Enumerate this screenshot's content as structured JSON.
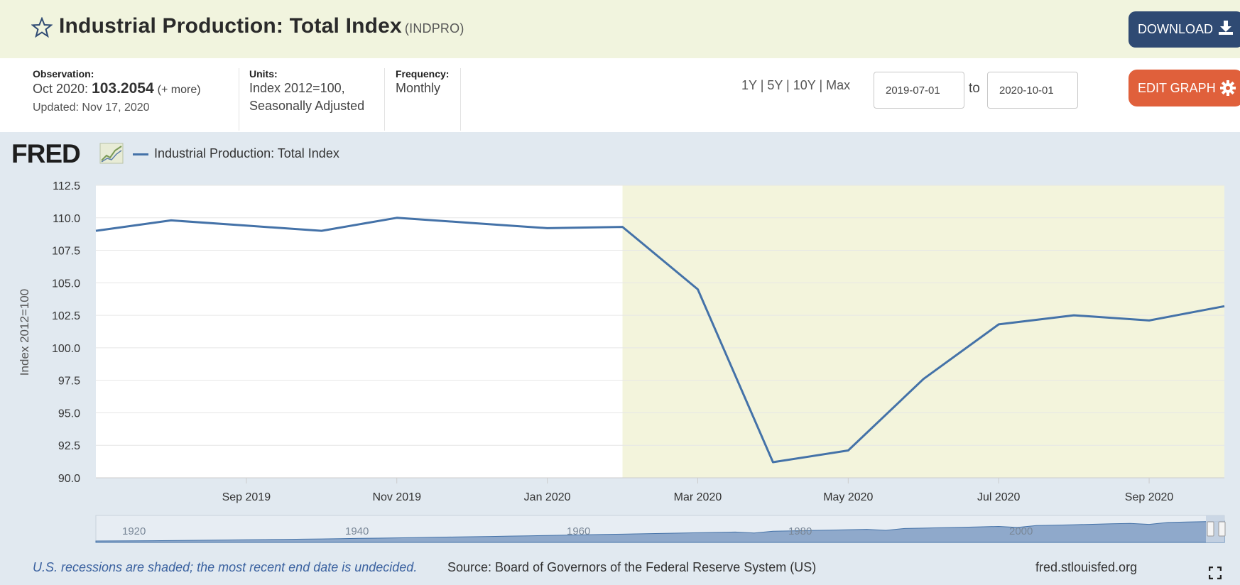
{
  "header": {
    "title": "Industrial Production: Total Index",
    "series_id": "(INDPRO)",
    "download_label": "DOWNLOAD",
    "accent": "#2f4a73"
  },
  "info": {
    "observation_label": "Observation:",
    "observation_period": "Oct 2020:",
    "observation_value": "103.2054",
    "observation_more": "(+ more)",
    "updated": "Updated: Nov 17, 2020",
    "units_label": "Units:",
    "units_line1": "Index 2012=100,",
    "units_line2": "Seasonally Adjusted",
    "frequency_label": "Frequency:",
    "frequency_value": "Monthly"
  },
  "controls": {
    "range_links": "1Y | 5Y | 10Y | Max",
    "start_date": "2019-07-01",
    "to_label": "to",
    "end_date": "2020-10-01",
    "edit_label": "EDIT GRAPH",
    "edit_color": "#e0603b"
  },
  "logo": "FRED",
  "footer": {
    "recession_note": "U.S. recessions are shaded; the most recent end date is undecided.",
    "source": "Source: Board of Governors of the Federal Reserve System (US)",
    "site": "fred.stlouisfed.org"
  },
  "chart_data": {
    "type": "line",
    "legend": "Industrial Production: Total Index",
    "ylabel": "Index 2012=100",
    "ylim": [
      90.0,
      112.5
    ],
    "yticks": [
      "90.0",
      "92.5",
      "95.0",
      "97.5",
      "100.0",
      "102.5",
      "105.0",
      "107.5",
      "110.0",
      "112.5"
    ],
    "xlim": [
      "2019-07-01",
      "2020-10-01"
    ],
    "xticks": [
      {
        "date": "2019-09-01",
        "label": "Sep 2019"
      },
      {
        "date": "2019-11-01",
        "label": "Nov 2019"
      },
      {
        "date": "2020-01-01",
        "label": "Jan 2020"
      },
      {
        "date": "2020-03-01",
        "label": "Mar 2020"
      },
      {
        "date": "2020-05-01",
        "label": "May 2020"
      },
      {
        "date": "2020-07-01",
        "label": "Jul 2020"
      },
      {
        "date": "2020-09-01",
        "label": "Sep 2020"
      }
    ],
    "recession": {
      "start": "2020-02-01",
      "end": "2020-10-01"
    },
    "series": [
      {
        "name": "Industrial Production: Total Index",
        "color": "#4472a8",
        "x": [
          "2019-07-01",
          "2019-08-01",
          "2019-09-01",
          "2019-10-01",
          "2019-11-01",
          "2019-12-01",
          "2020-01-01",
          "2020-02-01",
          "2020-03-01",
          "2020-04-01",
          "2020-05-01",
          "2020-06-01",
          "2020-07-01",
          "2020-08-01",
          "2020-09-01",
          "2020-10-01"
        ],
        "values": [
          109.0,
          109.8,
          109.4,
          109.0,
          110.0,
          109.6,
          109.2,
          109.3,
          104.5,
          91.2,
          92.1,
          97.6,
          101.8,
          102.5,
          102.1,
          103.2
        ]
      }
    ],
    "grid": true,
    "navigator_labels": [
      "1920",
      "1940",
      "1960",
      "1980",
      "2000"
    ],
    "recession_color": "#f3f4dc"
  }
}
